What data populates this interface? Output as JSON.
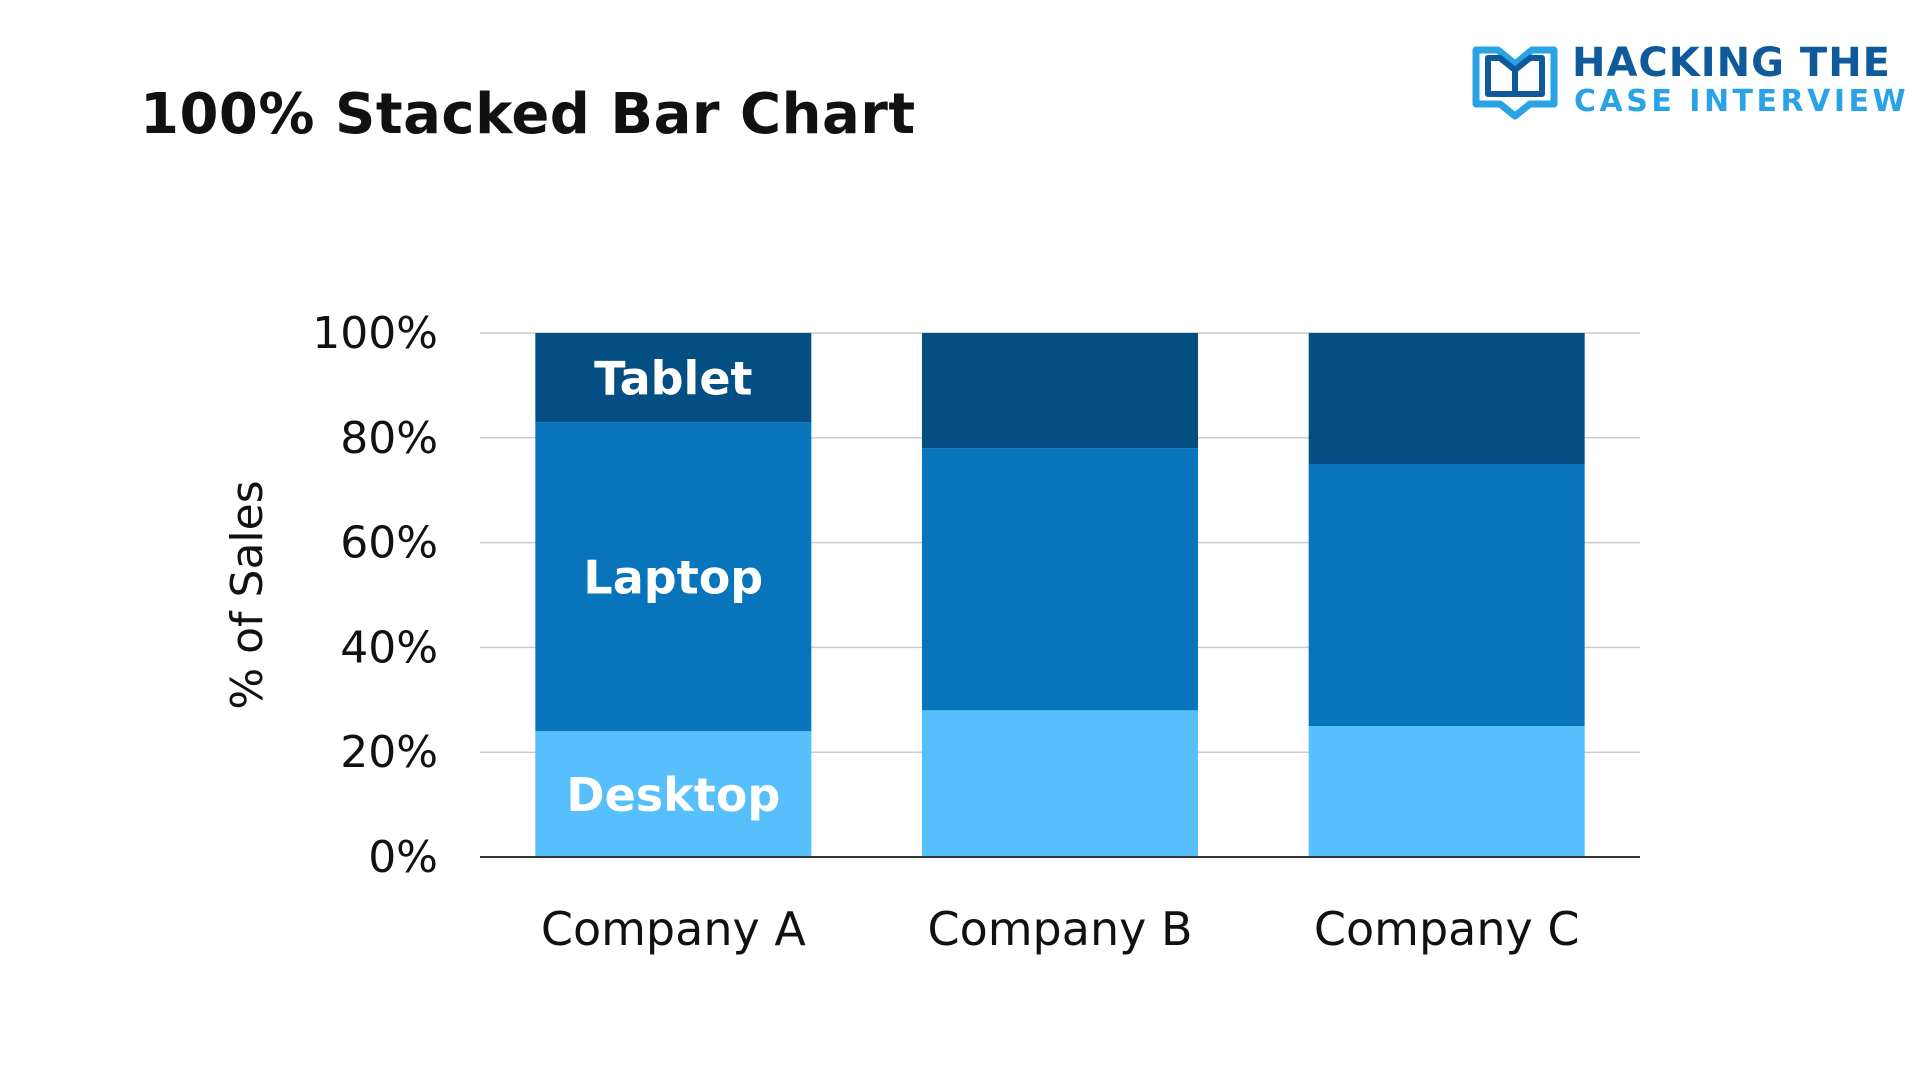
{
  "title": "100% Stacked Bar Chart",
  "logo": {
    "line1": "HACKING THE",
    "line2": "CASE INTERVIEW",
    "icon": "open-book-icon"
  },
  "colors": {
    "desktop": "#56bffc",
    "laptop": "#0874bc",
    "tablet": "#034f83",
    "grid": "#cccccc",
    "axis": "#333333",
    "text": "#111111",
    "logo_dark": "#0f5a9a",
    "logo_light": "#2aa3e6"
  },
  "chart_data": {
    "type": "bar",
    "stacked": true,
    "normalized": true,
    "title": "100% Stacked Bar Chart",
    "xlabel": "",
    "ylabel": "% of Sales",
    "ylim": [
      0,
      100
    ],
    "yticks": [
      "0%",
      "20%",
      "40%",
      "60%",
      "80%",
      "100%"
    ],
    "yticks_values": [
      0,
      20,
      40,
      60,
      80,
      100
    ],
    "grid": true,
    "legend": "none",
    "categories": [
      "Company A",
      "Company B",
      "Company C"
    ],
    "series": [
      {
        "name": "Desktop",
        "values": [
          24,
          28,
          25
        ],
        "color": "#56bffc",
        "label_on_first_bar": true
      },
      {
        "name": "Laptop",
        "values": [
          59,
          50,
          50
        ],
        "color": "#0874bc",
        "label_on_first_bar": true
      },
      {
        "name": "Tablet",
        "values": [
          17,
          22,
          25
        ],
        "color": "#034f83",
        "label_on_first_bar": true
      }
    ]
  }
}
